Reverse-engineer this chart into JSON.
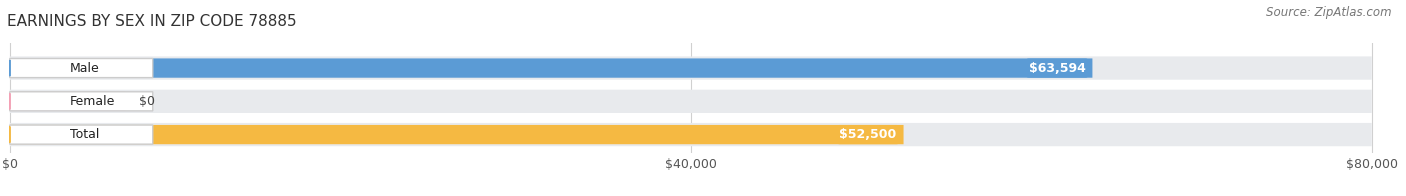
{
  "title": "EARNINGS BY SEX IN ZIP CODE 78885",
  "source": "Source: ZipAtlas.com",
  "categories": [
    "Male",
    "Female",
    "Total"
  ],
  "values": [
    63594,
    0,
    52500
  ],
  "max_value": 80000,
  "bar_colors": [
    "#5b9bd5",
    "#f4a0b5",
    "#f5b942"
  ],
  "bar_bg_color": "#e8eaed",
  "value_labels": [
    "$63,594",
    "$0",
    "$52,500"
  ],
  "x_ticks": [
    0,
    40000,
    80000
  ],
  "x_tick_labels": [
    "$0",
    "$40,000",
    "$80,000"
  ],
  "title_fontsize": 11,
  "source_fontsize": 8.5,
  "bar_label_fontsize": 9,
  "value_label_fontsize": 9,
  "tick_fontsize": 9,
  "background_color": "#ffffff",
  "grid_color": "#d0d0d0",
  "label_bg_color": "#ffffff",
  "label_border_color": "#cccccc"
}
